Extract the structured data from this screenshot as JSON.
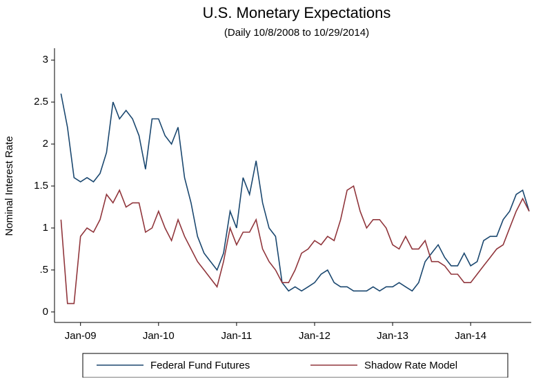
{
  "chart_data": {
    "type": "line",
    "title": "U.S. Monetary Expectations",
    "subtitle": "(Daily 10/8/2008 to 10/29/2014)",
    "y_label": "Nominal Interest Rate",
    "x": [
      "2008-10",
      "2008-11",
      "2008-12",
      "2009-01",
      "2009-02",
      "2009-03",
      "2009-04",
      "2009-05",
      "2009-06",
      "2009-07",
      "2009-08",
      "2009-09",
      "2009-10",
      "2009-11",
      "2009-12",
      "2010-01",
      "2010-02",
      "2010-03",
      "2010-04",
      "2010-05",
      "2010-06",
      "2010-07",
      "2010-08",
      "2010-09",
      "2010-10",
      "2010-11",
      "2010-12",
      "2011-01",
      "2011-02",
      "2011-03",
      "2011-04",
      "2011-05",
      "2011-06",
      "2011-07",
      "2011-08",
      "2011-09",
      "2011-10",
      "2011-11",
      "2011-12",
      "2012-01",
      "2012-02",
      "2012-03",
      "2012-04",
      "2012-05",
      "2012-06",
      "2012-07",
      "2012-08",
      "2012-09",
      "2012-10",
      "2012-11",
      "2012-12",
      "2013-01",
      "2013-02",
      "2013-03",
      "2013-04",
      "2013-05",
      "2013-06",
      "2013-07",
      "2013-08",
      "2013-09",
      "2013-10",
      "2013-11",
      "2013-12",
      "2014-01",
      "2014-02",
      "2014-03",
      "2014-04",
      "2014-05",
      "2014-06",
      "2014-07",
      "2014-08",
      "2014-09",
      "2014-10"
    ],
    "series": [
      {
        "name": "Federal Fund Futures",
        "color": "#1a476f",
        "values": [
          2.6,
          2.2,
          1.6,
          1.55,
          1.6,
          1.55,
          1.65,
          1.9,
          2.5,
          2.3,
          2.4,
          2.3,
          2.1,
          1.7,
          2.3,
          2.3,
          2.1,
          2.0,
          2.2,
          1.6,
          1.3,
          0.9,
          0.7,
          0.6,
          0.5,
          0.7,
          1.2,
          1.0,
          1.6,
          1.4,
          1.8,
          1.3,
          1.0,
          0.9,
          0.35,
          0.25,
          0.3,
          0.25,
          0.3,
          0.35,
          0.45,
          0.5,
          0.35,
          0.3,
          0.3,
          0.25,
          0.25,
          0.25,
          0.3,
          0.25,
          0.3,
          0.3,
          0.35,
          0.3,
          0.25,
          0.35,
          0.6,
          0.7,
          0.8,
          0.65,
          0.55,
          0.55,
          0.7,
          0.55,
          0.6,
          0.85,
          0.9,
          0.9,
          1.1,
          1.2,
          1.4,
          1.45,
          1.2
        ]
      },
      {
        "name": "Shadow Rate Model",
        "color": "#90353b",
        "values": [
          1.1,
          0.1,
          0.1,
          0.9,
          1.0,
          0.95,
          1.1,
          1.4,
          1.3,
          1.45,
          1.25,
          1.3,
          1.3,
          0.95,
          1.0,
          1.2,
          1.0,
          0.85,
          1.1,
          0.9,
          0.75,
          0.6,
          0.5,
          0.4,
          0.3,
          0.6,
          1.0,
          0.8,
          0.95,
          0.95,
          1.1,
          0.75,
          0.6,
          0.5,
          0.35,
          0.35,
          0.5,
          0.7,
          0.75,
          0.85,
          0.8,
          0.9,
          0.85,
          1.1,
          1.45,
          1.5,
          1.2,
          1.0,
          1.1,
          1.1,
          1.0,
          0.8,
          0.75,
          0.9,
          0.75,
          0.75,
          0.85,
          0.6,
          0.6,
          0.55,
          0.45,
          0.45,
          0.35,
          0.35,
          0.45,
          0.55,
          0.65,
          0.75,
          0.8,
          1.0,
          1.2,
          1.35,
          1.2
        ]
      }
    ],
    "xlim": [
      "2008-09",
      "2014-10"
    ],
    "xticks": [
      {
        "value": "2009-01",
        "label": "Jan-09"
      },
      {
        "value": "2010-01",
        "label": "Jan-10"
      },
      {
        "value": "2011-01",
        "label": "Jan-11"
      },
      {
        "value": "2012-01",
        "label": "Jan-12"
      },
      {
        "value": "2013-01",
        "label": "Jan-13"
      },
      {
        "value": "2014-01",
        "label": "Jan-14"
      }
    ],
    "ylim": [
      -0.1,
      3.1
    ],
    "yticks": [
      0,
      {
        "value": 0.5,
        "label": ".5"
      },
      1,
      1.5,
      2,
      2.5,
      3
    ],
    "legend": "bottom"
  }
}
